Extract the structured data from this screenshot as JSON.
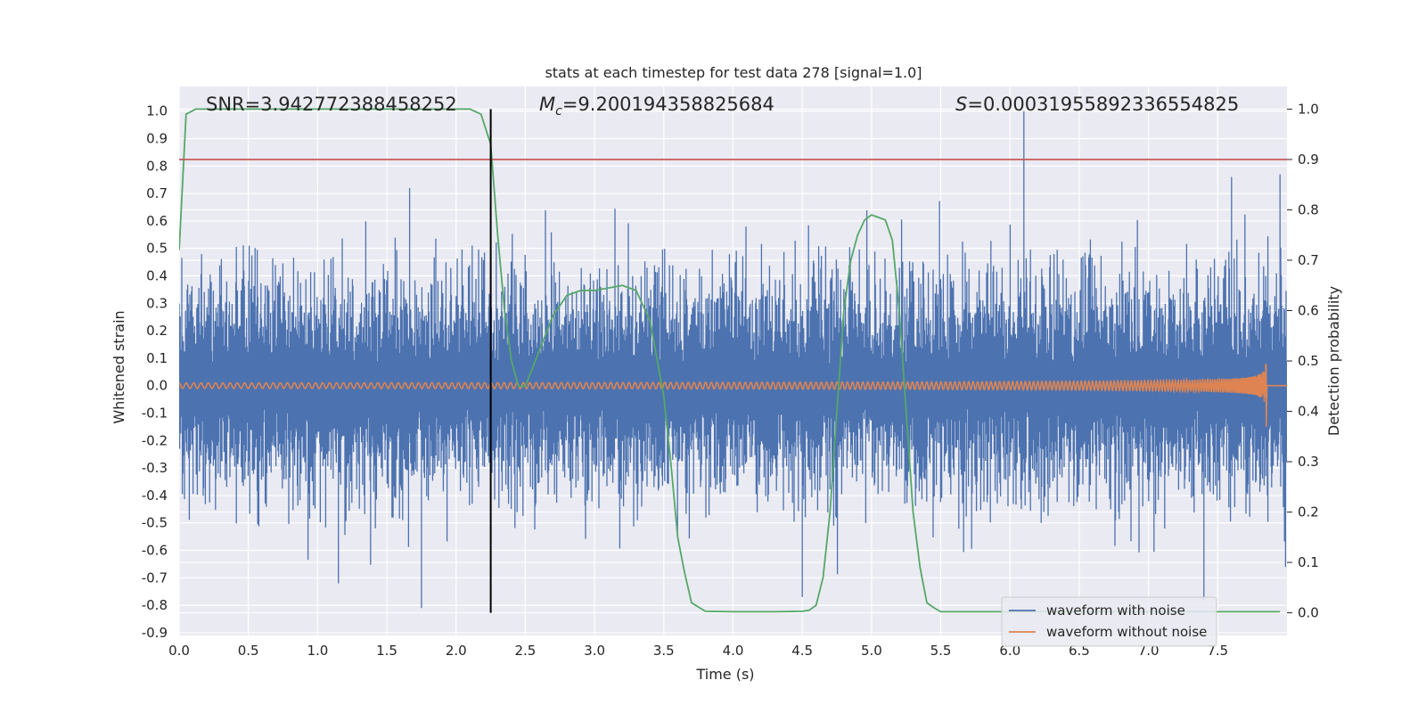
{
  "chart_data": {
    "type": "line",
    "title": "stats at each timestep for test data 278 [signal=1.0]",
    "xlabel": "Time (s)",
    "ylabel_left": "Whitened strain",
    "ylabel_right": "Detection probability",
    "xlim": [
      0.0,
      8.0
    ],
    "ylim_left": [
      -0.91,
      1.09
    ],
    "ylim_right": [
      -0.045,
      1.045
    ],
    "x_ticks": [
      "0.0",
      "0.5",
      "1.0",
      "1.5",
      "2.0",
      "2.5",
      "3.0",
      "3.5",
      "4.0",
      "4.5",
      "5.0",
      "5.5",
      "6.0",
      "6.5",
      "7.0",
      "7.5"
    ],
    "y_left_ticks": [
      "-0.9",
      "-0.8",
      "-0.7",
      "-0.6",
      "-0.5",
      "-0.4",
      "-0.3",
      "-0.2",
      "-0.1",
      "0.0",
      "0.1",
      "0.2",
      "0.3",
      "0.4",
      "0.5",
      "0.6",
      "0.7",
      "0.8",
      "0.9",
      "1.0"
    ],
    "y_right_ticks": [
      "0.0",
      "0.1",
      "0.2",
      "0.3",
      "0.4",
      "0.5",
      "0.6",
      "0.7",
      "0.8",
      "0.9",
      "1.0"
    ],
    "annotations": {
      "snr": "SNR=3.942772388458252",
      "mc_symbol": "M",
      "mc_sub": "c",
      "mc_value": "=9.200194358825684",
      "s_symbol": "S",
      "s_value": "=0.00031955892336554825"
    },
    "threshold_line": {
      "y_right": 0.9,
      "color": "#c44e52"
    },
    "marker_line": {
      "x": 2.25,
      "color": "#000000"
    },
    "series": [
      {
        "name": "waveform with noise",
        "color": "#4c72b0",
        "axis": "left",
        "description": "dense noisy strain, roughly ±0.45 envelope with spikes to ±0.7",
        "envelope_max": 1.0,
        "envelope_min": -0.81,
        "typical_amplitude": 0.45
      },
      {
        "name": "waveform without noise",
        "color": "#dd8452",
        "axis": "left",
        "description": "chirp signal growing in amplitude, ending near 7.85 s",
        "start_amplitude": 0.01,
        "peak_amplitude": 0.12,
        "merger_time": 7.85
      },
      {
        "name": "detection probability",
        "color": "#55a868",
        "axis": "right",
        "x": [
          0.0,
          0.05,
          0.12,
          0.25,
          0.5,
          1.0,
          1.5,
          1.9,
          2.0,
          2.1,
          2.18,
          2.25,
          2.3,
          2.35,
          2.4,
          2.45,
          2.5,
          2.6,
          2.7,
          2.8,
          2.9,
          3.0,
          3.1,
          3.2,
          3.3,
          3.4,
          3.5,
          3.55,
          3.6,
          3.65,
          3.7,
          3.8,
          4.0,
          4.3,
          4.5,
          4.55,
          4.6,
          4.65,
          4.7,
          4.75,
          4.8,
          4.85,
          4.9,
          4.95,
          5.0,
          5.05,
          5.1,
          5.15,
          5.2,
          5.25,
          5.3,
          5.35,
          5.4,
          5.45,
          5.5,
          5.6,
          6.0,
          7.0,
          7.95
        ],
        "values": [
          0.72,
          0.99,
          1.0,
          1.0,
          1.0,
          1.0,
          1.0,
          1.0,
          1.0,
          1.0,
          0.99,
          0.93,
          0.75,
          0.6,
          0.5,
          0.45,
          0.45,
          0.52,
          0.59,
          0.63,
          0.64,
          0.64,
          0.645,
          0.65,
          0.64,
          0.58,
          0.43,
          0.3,
          0.15,
          0.08,
          0.02,
          0.003,
          0.002,
          0.002,
          0.003,
          0.005,
          0.015,
          0.07,
          0.2,
          0.4,
          0.6,
          0.7,
          0.75,
          0.78,
          0.79,
          0.785,
          0.78,
          0.74,
          0.6,
          0.4,
          0.2,
          0.09,
          0.02,
          0.01,
          0.002,
          0.002,
          0.002,
          0.002,
          0.002
        ]
      }
    ]
  },
  "legend": {
    "items": [
      {
        "label": "waveform with noise",
        "color": "#4c72b0"
      },
      {
        "label": "waveform without noise",
        "color": "#dd8452"
      }
    ]
  }
}
